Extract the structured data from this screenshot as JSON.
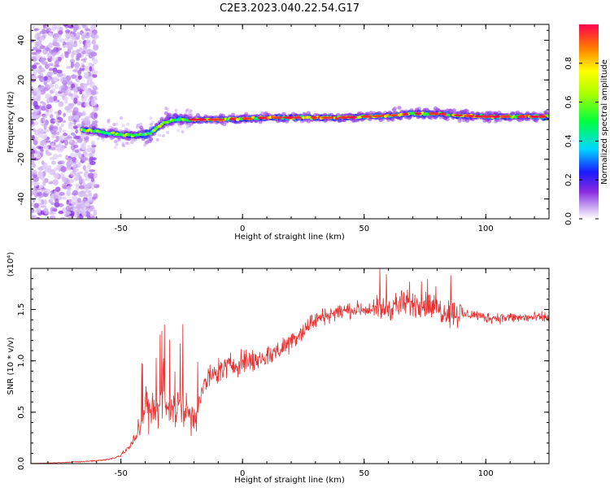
{
  "title": "C2E3.2023.040.22.54.G17",
  "chart_data": [
    {
      "type": "heatmap",
      "xlabel": "Height of straight line (km)",
      "ylabel": "Frequency (Hz)",
      "xlim": [
        -87,
        126
      ],
      "ylim": [
        -50,
        48
      ],
      "xticks": [
        -50,
        0,
        50,
        100
      ],
      "yticks": [
        -40,
        -20,
        0,
        20,
        40
      ],
      "colorbar": {
        "label": "Normalized spectral amplitude",
        "range": [
          0.0,
          1.0
        ],
        "ticks": [
          0.0,
          0.2,
          0.4,
          0.6,
          0.8
        ]
      },
      "ridge": {
        "description_points_x": [
          -65,
          -55,
          -45,
          -38,
          -33,
          -28,
          -20,
          -10,
          0,
          10,
          20,
          30,
          40,
          50,
          60,
          70,
          80,
          90,
          100,
          110,
          126
        ],
        "description_points_y": [
          -5,
          -7,
          -8,
          -7,
          -2,
          0,
          0,
          0,
          0.5,
          1,
          1,
          1,
          1,
          1.5,
          2,
          3,
          3,
          2,
          1.5,
          1.5,
          1.5
        ]
      }
    },
    {
      "type": "line",
      "xlabel": "Height of straight line (km)",
      "ylabel": "SNR (10 * v/v)",
      "y_multiplier": "(x10⁴)",
      "xlim": [
        -87,
        126
      ],
      "ylim": [
        0,
        1.9
      ],
      "xticks": [
        -50,
        0,
        50,
        100
      ],
      "yticks": [
        0.0,
        0.5,
        1.0,
        1.5
      ],
      "series": [
        {
          "color": "#e83030",
          "x": [
            -87,
            -75,
            -65,
            -55,
            -50,
            -45,
            -42,
            -40,
            -38,
            -35,
            -32,
            -30,
            -28,
            -25,
            -22,
            -20,
            -15,
            -10,
            -5,
            0,
            5,
            10,
            15,
            20,
            25,
            30,
            35,
            40,
            45,
            50,
            55,
            60,
            65,
            70,
            75,
            80,
            85,
            90,
            95,
            100,
            105,
            110,
            115,
            120,
            126
          ],
          "y": [
            0.0,
            0.01,
            0.02,
            0.04,
            0.08,
            0.2,
            0.4,
            0.6,
            0.45,
            0.55,
            0.5,
            0.6,
            0.55,
            0.55,
            0.5,
            0.45,
            0.8,
            0.9,
            0.95,
            1.0,
            1.0,
            1.05,
            1.1,
            1.2,
            1.3,
            1.4,
            1.45,
            1.48,
            1.5,
            1.5,
            1.5,
            1.52,
            1.55,
            1.55,
            1.55,
            1.5,
            1.48,
            1.45,
            1.45,
            1.42,
            1.42,
            1.42,
            1.42,
            1.42,
            1.42
          ]
        }
      ]
    }
  ]
}
